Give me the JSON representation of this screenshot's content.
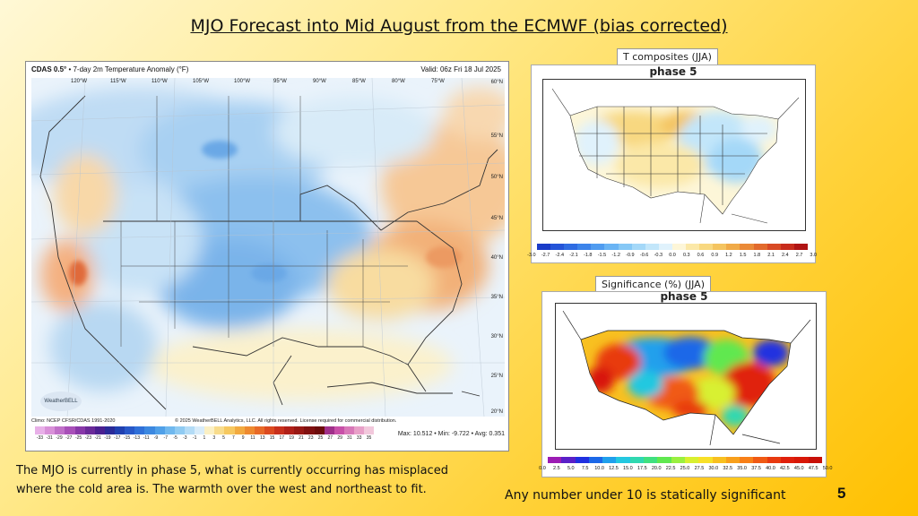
{
  "slide": {
    "title": "MJO Forecast into Mid August from the ECMWF (bias corrected)",
    "caption_line1": "The MJO is currently in phase 5, what is currently occurring  has misplaced",
    "caption_line2": "where the cold area is.  The warmth over the west and northeast to fit.",
    "note": "Any number under 10 is statically significant",
    "page_number": "5"
  },
  "left_map": {
    "product": "CDAS 0.5°",
    "description": "• 7-day 2m Temperature Anomaly (°F)",
    "valid": "Valid: 06z Fri 18 Jul 2025",
    "lon_labels": [
      "120°W",
      "115°W",
      "110°W",
      "105°W",
      "100°W",
      "95°W",
      "90°W",
      "85°W",
      "80°W",
      "75°W"
    ],
    "lat_labels": [
      "60°N",
      "55°N",
      "50°N",
      "45°N",
      "40°N",
      "35°N",
      "30°N",
      "25°N",
      "20°N"
    ],
    "logo_text": "WeatherBELL",
    "climo": "Climo: NCEP CFSR/CDAS 1991-2020",
    "copyright": "© 2025 WeatherBELL Analytics, LLC. All rights reserved. License required for commercial distribution.",
    "stats": "Max: 10.512 • Min: -9.722 • Avg: 0.351",
    "colorbar_ticks": [
      "-33",
      "-31",
      "-29",
      "-27",
      "-25",
      "-23",
      "-21",
      "-19",
      "-17",
      "-15",
      "-13",
      "-11",
      "-9",
      "-7",
      "-5",
      "-3",
      "-1",
      "1",
      "3",
      "5",
      "7",
      "9",
      "11",
      "13",
      "15",
      "17",
      "19",
      "21",
      "23",
      "25",
      "27",
      "29",
      "31",
      "33",
      "35"
    ],
    "colorbar_colors": [
      "#e8b0e8",
      "#d890d8",
      "#c070c8",
      "#a850b8",
      "#8838a8",
      "#6a2a98",
      "#4a2090",
      "#2a2a98",
      "#2040b0",
      "#2858c8",
      "#3070d8",
      "#3c88e0",
      "#50a0e8",
      "#70b8ee",
      "#90cbf2",
      "#b4dcf6",
      "#d8ecfa",
      "#fbf0c4",
      "#f8dc8c",
      "#f6c860",
      "#f2aa40",
      "#ee8a30",
      "#e86a28",
      "#dc4a20",
      "#c8301c",
      "#b02018",
      "#981814",
      "#801010",
      "#6c0c0c",
      "#a0308a",
      "#c850a8",
      "#d878b8",
      "#e8a0c8",
      "#f2c8dc"
    ]
  },
  "top_right": {
    "label": "T composites (JJA)",
    "phase": "phase 5",
    "scale_ticks": [
      "-3.0",
      "-2.7",
      "-2.4",
      "-2.1",
      "-1.8",
      "-1.5",
      "-1.2",
      "-0.9",
      "-0.6",
      "-0.3",
      "0.0",
      "0.3",
      "0.6",
      "0.9",
      "1.2",
      "1.5",
      "1.8",
      "2.1",
      "2.4",
      "2.7",
      "3.0"
    ],
    "scale_colors": [
      "#1a3cc8",
      "#2454d8",
      "#2f6ce2",
      "#3d84ea",
      "#509cf0",
      "#6ab4f4",
      "#86c8f6",
      "#a4d8f8",
      "#c2e6fa",
      "#e0f2fc",
      "#fdf6d8",
      "#fbe8a8",
      "#f8d880",
      "#f4c460",
      "#f0aa48",
      "#ea8a38",
      "#e26a2c",
      "#d84a24",
      "#c82c1c",
      "#b01414"
    ]
  },
  "bottom_right": {
    "label": "Significance (%) (JJA)",
    "phase": "phase 5",
    "scale_ticks": [
      "0.0",
      "2.5",
      "5.0",
      "7.5",
      "10.0",
      "12.5",
      "15.0",
      "17.5",
      "20.0",
      "22.5",
      "25.0",
      "27.5",
      "30.0",
      "32.5",
      "35.0",
      "37.5",
      "40.0",
      "42.5",
      "45.0",
      "47.5",
      "50.0"
    ],
    "scale_colors": [
      "#9c1cb4",
      "#5a20c8",
      "#2030e0",
      "#1c68e8",
      "#20a0ec",
      "#24c8e0",
      "#30d8b0",
      "#40e080",
      "#60e850",
      "#9af040",
      "#d8f030",
      "#f8e028",
      "#f8c020",
      "#f8a01c",
      "#f88018",
      "#f05a14",
      "#e83a10",
      "#e0200c",
      "#d81808",
      "#c81008"
    ]
  }
}
